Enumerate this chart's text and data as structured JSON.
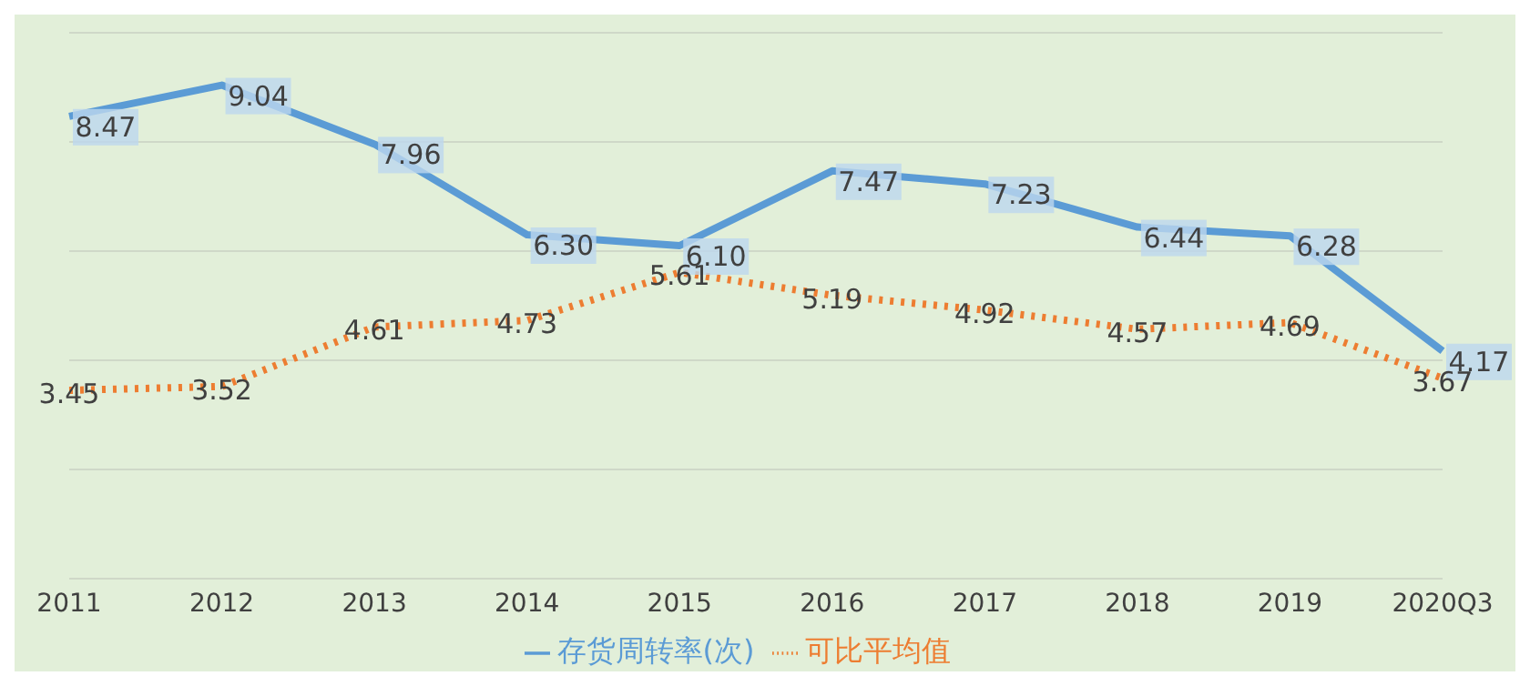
{
  "chart_data": {
    "type": "line",
    "categories": [
      "2011",
      "2012",
      "2013",
      "2014",
      "2015",
      "2016",
      "2017",
      "2018",
      "2019",
      "2020Q3"
    ],
    "series": [
      {
        "name": "存货周转率(次)",
        "color": "#5b9bd5",
        "values": [
          8.47,
          9.04,
          7.96,
          6.3,
          6.1,
          7.47,
          7.23,
          6.44,
          6.28,
          4.17
        ],
        "value_labels": [
          "8.47",
          "9.04",
          "7.96",
          "6.30",
          "6.10",
          "7.47",
          "7.23",
          "6.44",
          "6.28",
          "4.17"
        ],
        "line_style": "solid"
      },
      {
        "name": "可比平均值",
        "color": "#ed7d31",
        "values": [
          3.45,
          3.52,
          4.61,
          4.73,
          5.61,
          5.19,
          4.92,
          4.57,
          4.69,
          3.67
        ],
        "line_style": "dotted"
      }
    ],
    "tick_labels": "x",
    "grid": "y",
    "legend": "bottom",
    "data_labels": true,
    "marker": "none"
  }
}
